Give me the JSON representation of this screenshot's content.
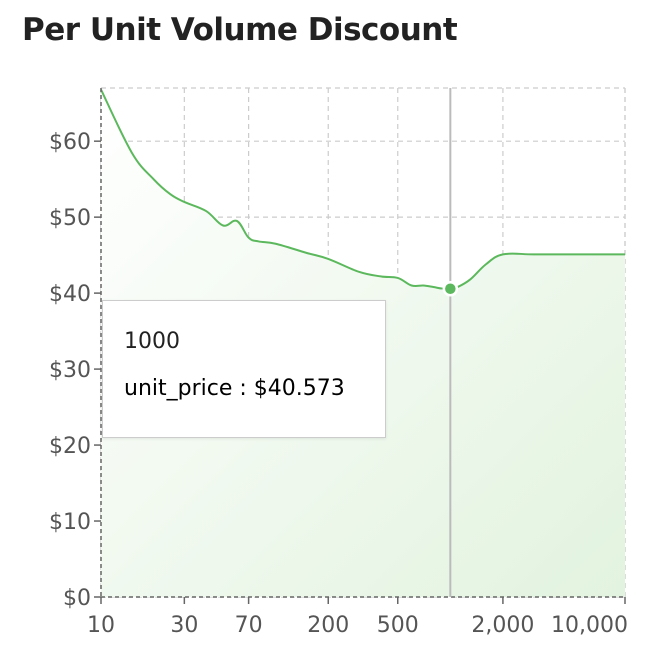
{
  "title": "Per Unit Volume Discount",
  "colors": {
    "line": "#5cb85c",
    "fill": "#e6f4e3",
    "grid": "#cccccc",
    "axis": "#666666",
    "cursor": "#bbbbbb"
  },
  "chart_data": {
    "type": "area",
    "title": "Per Unit Volume Discount",
    "xlabel": "",
    "ylabel": "",
    "x_scale": "log",
    "xlim": [
      10,
      10000
    ],
    "ylim": [
      0,
      67
    ],
    "grid": true,
    "x_ticks": [
      10,
      30,
      70,
      200,
      500,
      2000,
      10000
    ],
    "x_tick_labels": [
      "10",
      "30",
      "70",
      "200",
      "500",
      "2,000",
      "10,000"
    ],
    "y_ticks": [
      0,
      10,
      20,
      30,
      40,
      50,
      60
    ],
    "y_tick_labels": [
      "$0",
      "$10",
      "$20",
      "$30",
      "$40",
      "$50",
      "$60"
    ],
    "series": [
      {
        "name": "unit_price",
        "x": [
          10,
          15,
          20,
          25,
          30,
          40,
          50,
          60,
          70,
          80,
          100,
          150,
          200,
          300,
          400,
          500,
          600,
          700,
          800,
          900,
          1000,
          1100,
          1300,
          1600,
          2000,
          3000,
          5000,
          10000
        ],
        "y": [
          66.8,
          58.5,
          55.0,
          53.0,
          52.0,
          50.8,
          48.9,
          49.5,
          47.3,
          46.8,
          46.5,
          45.3,
          44.5,
          42.8,
          42.2,
          42.0,
          41.0,
          41.0,
          40.8,
          40.6,
          40.6,
          40.8,
          41.8,
          43.8,
          45.1,
          45.1,
          45.1,
          45.1
        ]
      }
    ],
    "cursor": {
      "x": 1000,
      "y": 40.573
    }
  },
  "tooltip": {
    "x_value": "1000",
    "series_label": "unit_price : $40.573"
  }
}
